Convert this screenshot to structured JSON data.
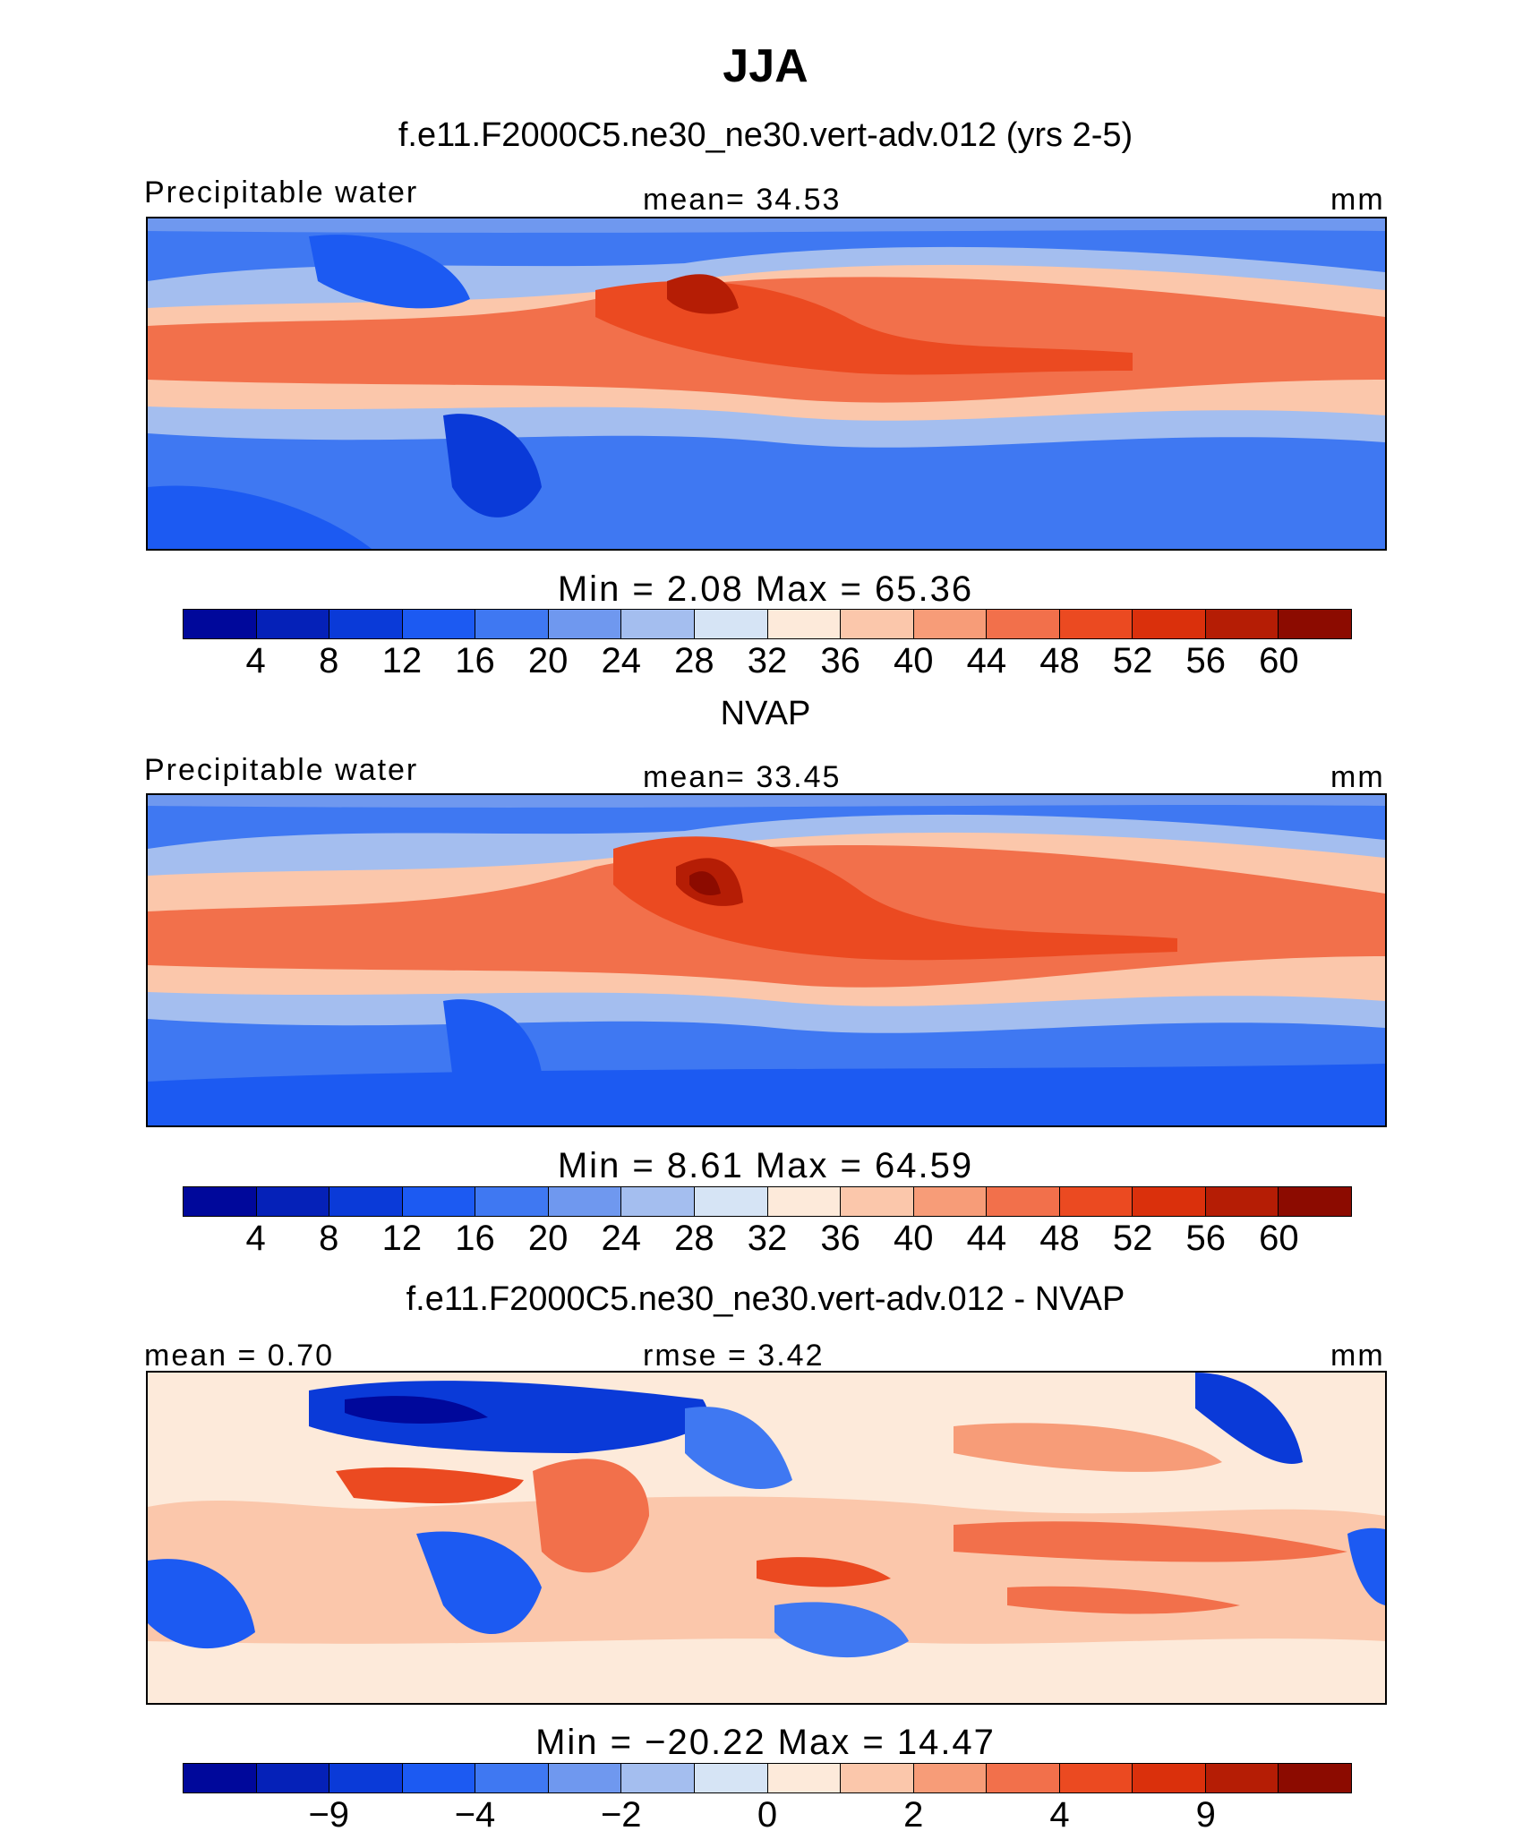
{
  "title": "JJA",
  "colors": [
    "#00089b",
    "#0521b8",
    "#0a3ad8",
    "#1c5af2",
    "#3f78f2",
    "#6f98ef",
    "#a4beef",
    "#d6e4f5",
    "#fdeada",
    "#fbc7ab",
    "#f79c78",
    "#f2704b",
    "#eb4a21",
    "#da300c",
    "#b51d05",
    "#8c0b00"
  ],
  "panels": [
    {
      "title": "f.e11.F2000C5.ne30_ne30.vert-adv.012 (yrs 2-5)",
      "left_label": "Precipitable water",
      "center_label": "mean=   34.53",
      "right_label": "mm",
      "min_max": "Min  =      2.08  Max  =    65.36",
      "colorbar_ticks": [
        "4",
        "8",
        "12",
        "16",
        "20",
        "24",
        "28",
        "32",
        "36",
        "40",
        "44",
        "48",
        "52",
        "56",
        "60"
      ]
    },
    {
      "title": "NVAP",
      "left_label": "Precipitable water",
      "center_label": "mean=   33.45",
      "right_label": "mm",
      "min_max": "Min  =      8.61  Max  =    64.59",
      "colorbar_ticks": [
        "4",
        "8",
        "12",
        "16",
        "20",
        "24",
        "28",
        "32",
        "36",
        "40",
        "44",
        "48",
        "52",
        "56",
        "60"
      ]
    },
    {
      "title": "f.e11.F2000C5.ne30_ne30.vert-adv.012 - NVAP",
      "left_label": "mean  =     0.70",
      "center_label": "rmse  =      3.42",
      "right_label": "mm",
      "min_max": "Min  =  −20.22  Max  =    14.47",
      "colorbar_ticks": [
        "−9",
        "−4",
        "−2",
        "0",
        "2",
        "4",
        "9"
      ]
    }
  ]
}
